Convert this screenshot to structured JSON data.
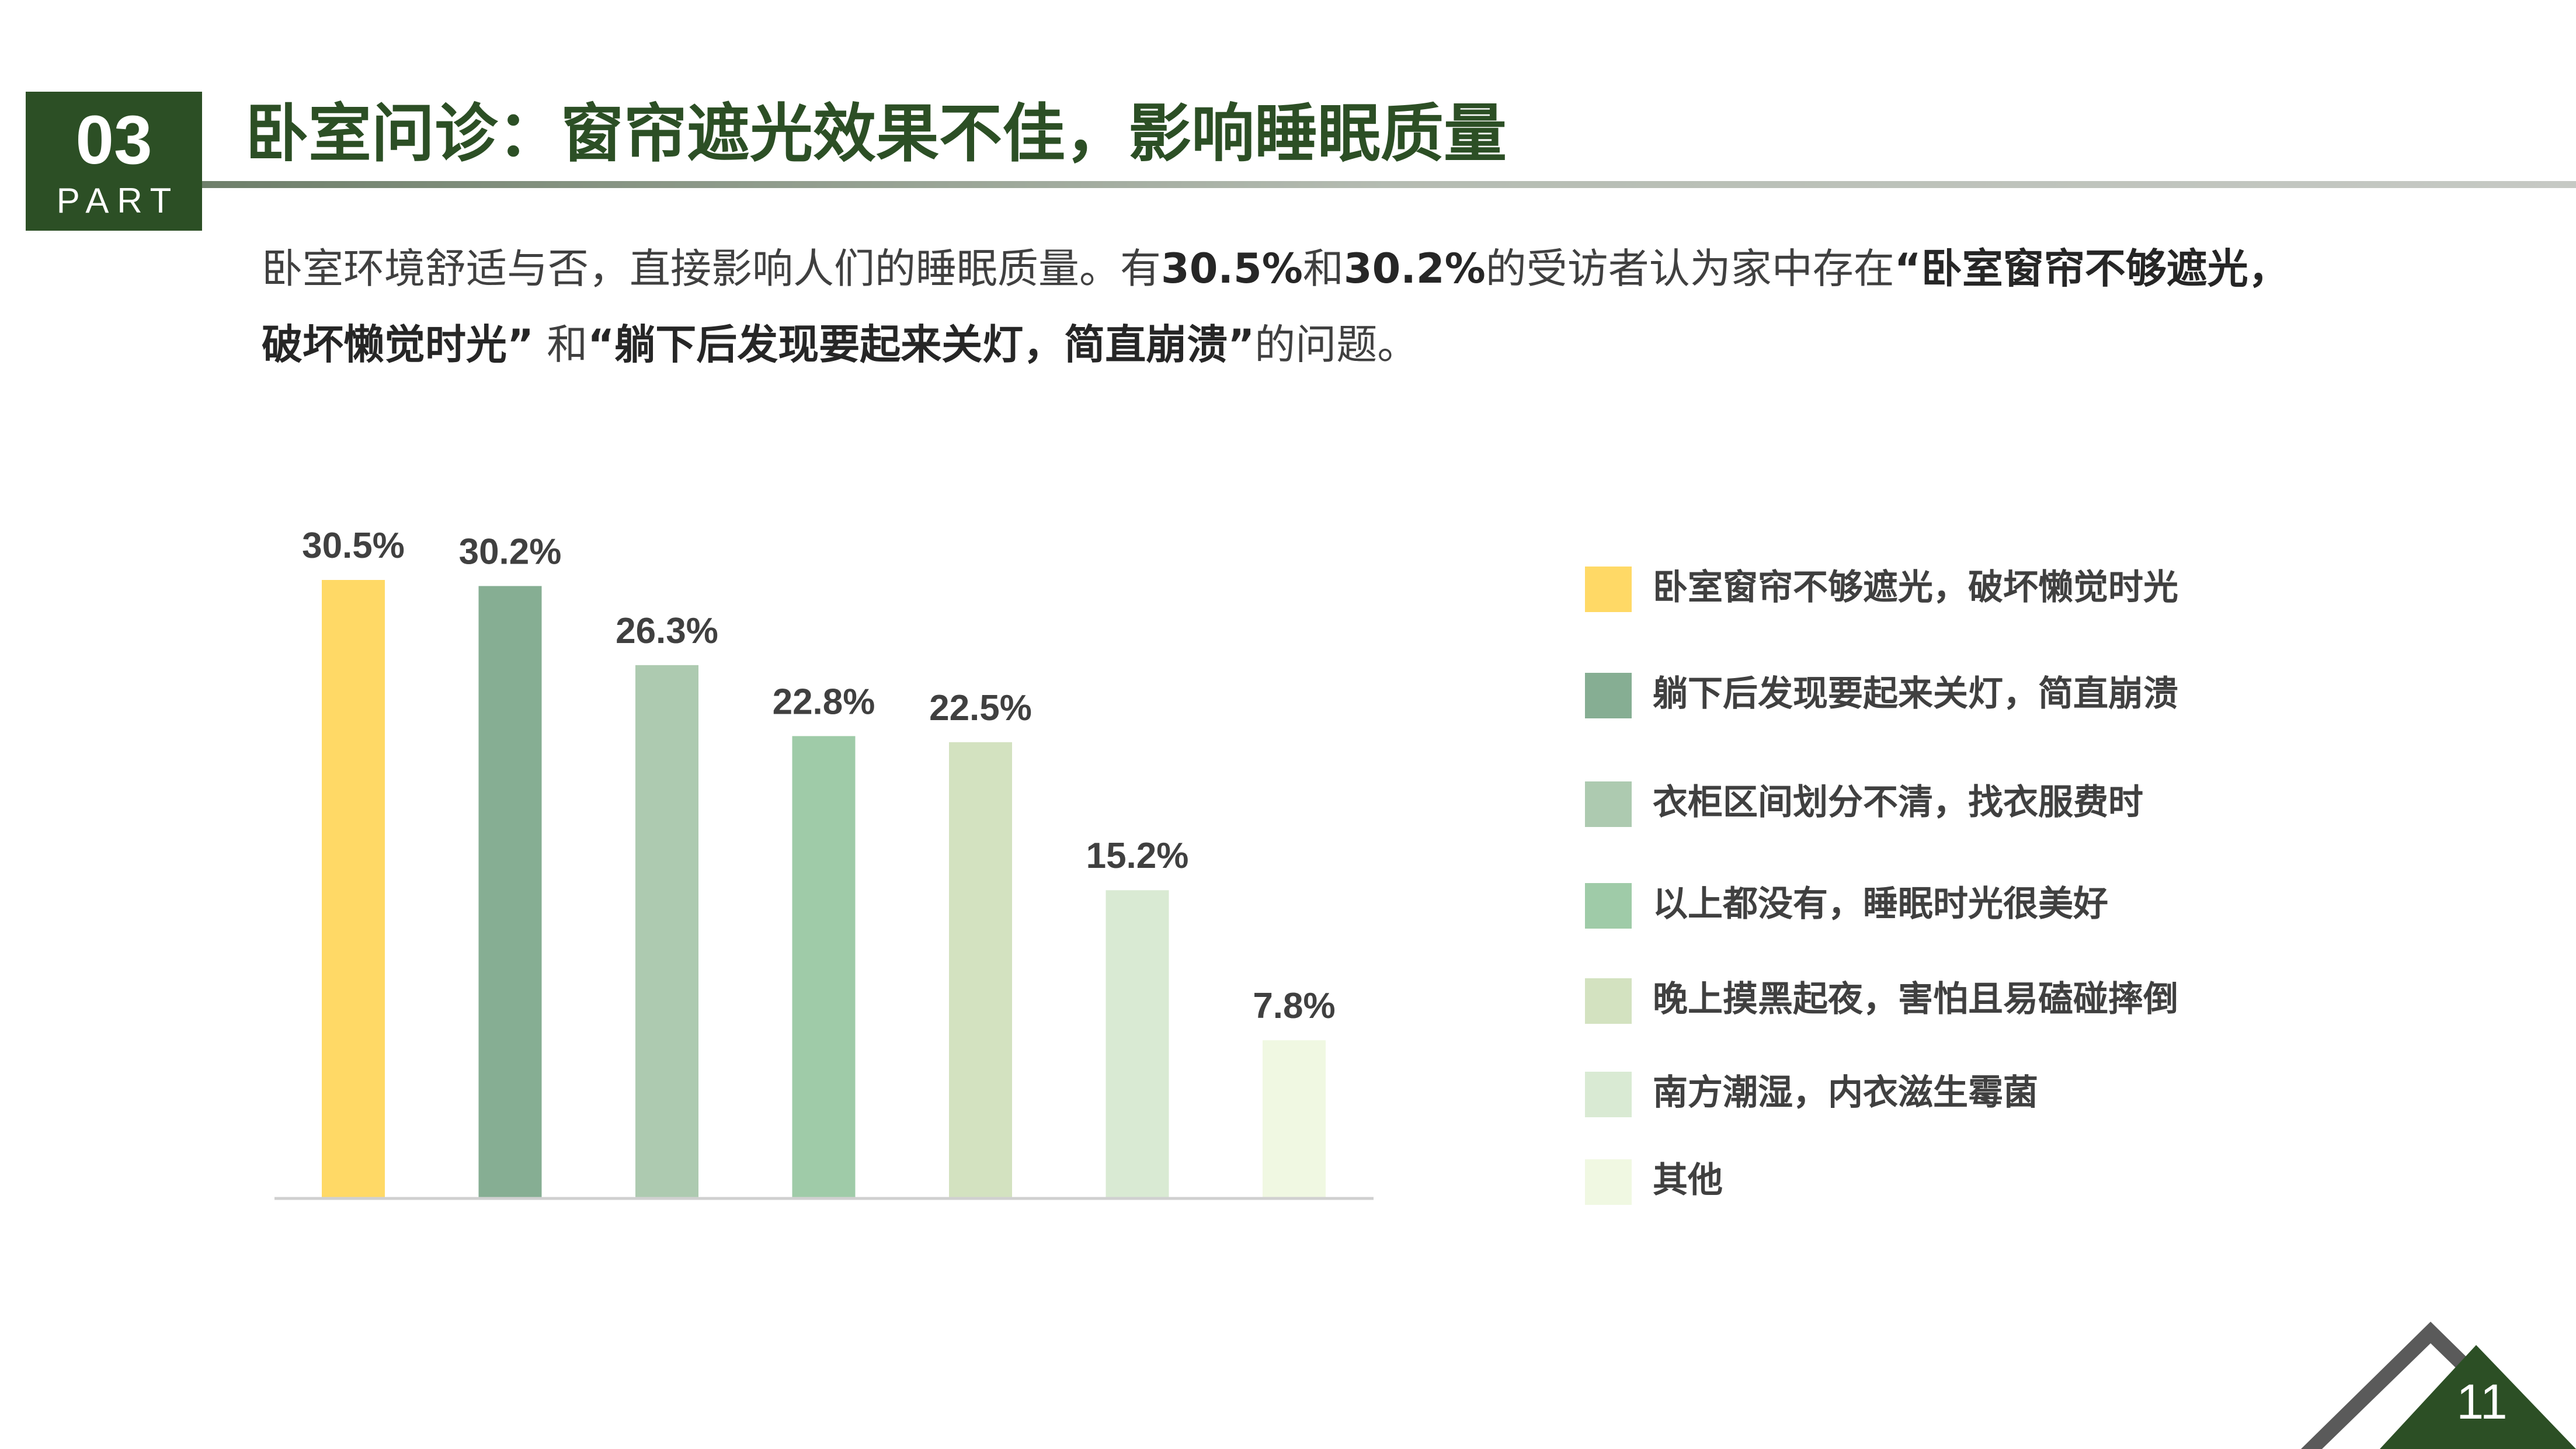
{
  "header": {
    "part_number": "03",
    "part_label": "PART",
    "title": "卧室问诊：窗帘遮光效果不佳，影响睡眠质量"
  },
  "intro": {
    "line1_part1": "卧室环境舒适与否，直接影响人们的睡眠质量。有",
    "line1_pct1": "30.5%",
    "line1_and": "和",
    "line1_pct2": "30.2%",
    "line1_part2": "的受访者认为家中存在",
    "quote1_line1": "“卧室窗帘不够遮光，",
    "quote1_line2": "破坏懒觉时光”",
    "line2_and": " 和",
    "quote2": "“躺下后发现要起来关灯，简直崩溃”",
    "line2_end": "的问题。"
  },
  "chart_data": {
    "type": "bar",
    "categories": [
      "卧室窗帘不够遮光，破坏懒觉时光",
      "躺下后发现要起来关灯，简直崩溃",
      "衣柜区间划分不清，找衣服费时",
      "以上都没有，睡眠时光很美好",
      "晚上摸黑起夜，害怕且易磕碰摔倒",
      "南方潮湿，内衣滋生霉菌",
      "其他"
    ],
    "values": [
      30.5,
      30.2,
      26.3,
      22.8,
      22.5,
      15.2,
      7.8
    ],
    "data_labels": [
      "30.5%",
      "30.2%",
      "26.3%",
      "22.8%",
      "22.5%",
      "15.2%",
      "7.8%"
    ],
    "colors": [
      "#ffd966",
      "#86ae93",
      "#adcab0",
      "#9fcba8",
      "#d3e2c0",
      "#d9ead3",
      "#f0f8e2"
    ],
    "legend_position": "right",
    "grid": false,
    "ylim": [
      0,
      30.5
    ]
  },
  "footer": {
    "page_number": "11"
  },
  "colors": {
    "accent_dark_green": "#2c4f25",
    "text": "#404040"
  }
}
